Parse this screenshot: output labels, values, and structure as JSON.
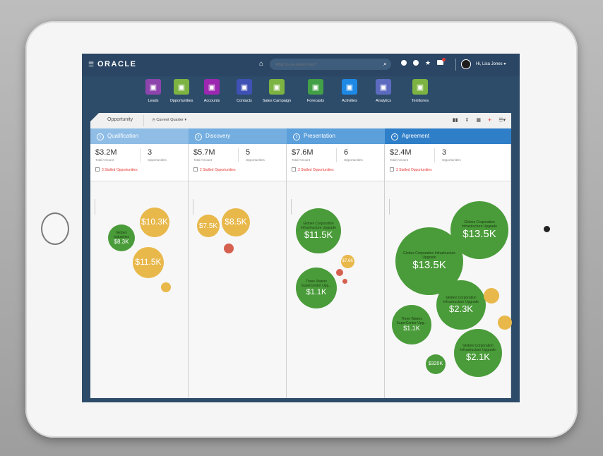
{
  "topbar": {
    "logo": "ORACLE",
    "search_placeholder": "What do you want to find ?",
    "user_name": "Hi, Lisa Jones"
  },
  "nav": {
    "items": [
      {
        "label": "Leads",
        "color": "#8e44ad",
        "icon": "leads-icon"
      },
      {
        "label": "Opportunities",
        "color": "#7cb342",
        "icon": "opportunities-icon"
      },
      {
        "label": "Accounts",
        "color": "#9c27b0",
        "icon": "accounts-icon"
      },
      {
        "label": "Contacts",
        "color": "#3f51b5",
        "icon": "contacts-icon"
      },
      {
        "label": "Sales Campaign",
        "color": "#7cb342",
        "icon": "sales-campaign-icon"
      },
      {
        "label": "Forecasts",
        "color": "#43a047",
        "icon": "forecasts-icon"
      },
      {
        "label": "Activities",
        "color": "#1e88e5",
        "icon": "activities-icon"
      },
      {
        "label": "Analytics",
        "color": "#5c6bc0",
        "icon": "analytics-icon"
      },
      {
        "label": "Territories",
        "color": "#7cb342",
        "icon": "territories-icon"
      }
    ]
  },
  "toolbar": {
    "title": "Opportunity",
    "period": "Current Quarter"
  },
  "stages": [
    {
      "num": "1",
      "name": "Qualification",
      "color": "#8fbde6",
      "amount": "$3.2M",
      "amount_label": "Total Amount",
      "count": "3",
      "count_label": "Opportunities",
      "stalled": "3 Stalled Opportunities",
      "bubbles": [
        {
          "type": "g",
          "title": "Globex Industries",
          "value": "$8.3K"
        },
        {
          "type": "y",
          "title": "",
          "value": "$10.3K"
        },
        {
          "type": "y",
          "title": "",
          "value": "$11.5K"
        },
        {
          "type": "y",
          "title": "",
          "value": ""
        }
      ]
    },
    {
      "num": "2",
      "name": "Discovery",
      "color": "#74aee0",
      "amount": "$5.7M",
      "amount_label": "Total Amount",
      "count": "5",
      "count_label": "Opportunities",
      "stalled": "2 Stalled Opportunities",
      "bubbles": [
        {
          "type": "y",
          "title": "",
          "value": "$7.5K"
        },
        {
          "type": "y",
          "title": "",
          "value": "$8.5K"
        },
        {
          "type": "r",
          "title": "",
          "value": ""
        }
      ]
    },
    {
      "num": "3",
      "name": "Presentation",
      "color": "#5b9fdb",
      "amount": "$7.6M",
      "amount_label": "Total Amount",
      "count": "6",
      "count_label": "Opportunities",
      "stalled": "3 Stalled Opportunities",
      "bubbles": [
        {
          "type": "g",
          "title": "Globex Corporation Infrastructure Upgrade",
          "value": "$11.5K"
        },
        {
          "type": "y",
          "title": "",
          "value": "$7.6K"
        },
        {
          "type": "r",
          "title": "",
          "value": ""
        },
        {
          "type": "r",
          "title": "",
          "value": ""
        },
        {
          "type": "g",
          "title": "Three Waters SuperCenter Upg...",
          "value": "$1.1K"
        }
      ]
    },
    {
      "num": "4",
      "name": "Agreement",
      "color": "#2f7fc8",
      "amount": "$2.4M",
      "amount_label": "Total Amount",
      "count": "3",
      "count_label": "Opportunities",
      "stalled": "3 Stalled Opportunities",
      "bubbles": [
        {
          "type": "g",
          "title": "Globex Corporation Infrastructure Upgrade",
          "value": "$13.5K"
        },
        {
          "type": "g",
          "title": "Globex Corporation Infrastructure Upgrade",
          "value": "$13.5K"
        },
        {
          "type": "g",
          "title": "Globex Corporation Infrastructure Upgrade",
          "value": "$2.3K"
        },
        {
          "type": "y",
          "title": "",
          "value": ""
        },
        {
          "type": "g",
          "title": "Three Waters SuperCenter Upg...",
          "value": "$1.1K"
        },
        {
          "type": "y",
          "title": "",
          "value": ""
        },
        {
          "type": "g",
          "title": "Globex Corporation Infrastructure Upgrade",
          "value": "$2.1K"
        },
        {
          "type": "g",
          "title": "",
          "value": "$320K"
        }
      ]
    }
  ]
}
